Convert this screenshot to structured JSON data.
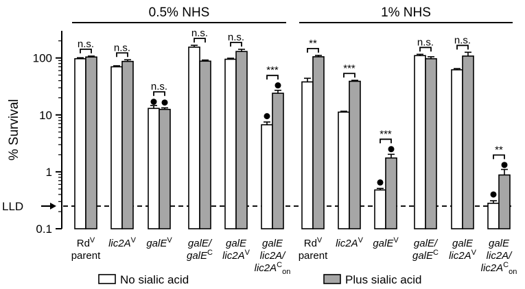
{
  "chart_data": {
    "type": "bar",
    "y_scale": "log",
    "ylabel": "% Survival",
    "ylim": [
      0.1,
      300
    ],
    "yticks": [
      {
        "value": 0.1,
        "label": "0.1"
      },
      {
        "value": 1,
        "label": "1"
      },
      {
        "value": 10,
        "label": "10"
      },
      {
        "value": 100,
        "label": "100"
      }
    ],
    "lld": {
      "label": "LLD",
      "value": 0.25
    },
    "series": [
      {
        "name": "No sialic acid",
        "color": "#ffffff"
      },
      {
        "name": "Plus sialic acid",
        "color": "#a6a6a6"
      }
    ],
    "groups": [
      {
        "label": "0.5% NHS",
        "categories": [
          {
            "lines": [
              "Rd|V",
              "parent"
            ],
            "values": [
              97,
              104
            ],
            "errors": [
              4,
              4
            ],
            "sig": "n.s.",
            "dots": [
              [],
              []
            ]
          },
          {
            "lines": [
              "_lic2A_|V"
            ],
            "values": [
              70,
              87
            ],
            "errors": [
              3,
              6
            ],
            "sig": "n.s.",
            "dots": [
              [],
              []
            ]
          },
          {
            "lines": [
              "_galE_|V"
            ],
            "values": [
              13,
              12.5
            ],
            "errors": [
              1.6,
              0.8
            ],
            "sig": "n.s.",
            "dots": [
              [
                17
              ],
              [
                16.5
              ]
            ]
          },
          {
            "lines": [
              "_galE/_",
              "_galE_|C"
            ],
            "values": [
              155,
              88
            ],
            "errors": [
              12,
              4
            ],
            "sig": "n.s.",
            "dots": [
              [],
              []
            ]
          },
          {
            "lines": [
              "_galE_",
              "_lic2A_|V"
            ],
            "values": [
              95,
              130
            ],
            "errors": [
              4,
              12
            ],
            "sig": "n.s.",
            "dots": [
              [],
              []
            ]
          },
          {
            "lines": [
              "_galE_",
              "_lic2A/_",
              "_lic2A_|C||on"
            ],
            "values": [
              6.7,
              24
            ],
            "errors": [
              0.8,
              3
            ],
            "sig": "***",
            "dots": [
              [
                9.5
              ],
              [
                33
              ]
            ]
          }
        ]
      },
      {
        "label": "1% NHS",
        "categories": [
          {
            "lines": [
              "Rd|V",
              "parent"
            ],
            "values": [
              38,
              105
            ],
            "errors": [
              6,
              6
            ],
            "sig": "**",
            "dots": [
              [],
              []
            ]
          },
          {
            "lines": [
              "_lic2A_|V"
            ],
            "values": [
              11.2,
              39
            ],
            "errors": [
              0.4,
              1.5
            ],
            "sig": "***",
            "dots": [
              [],
              []
            ]
          },
          {
            "lines": [
              "_galE_|V"
            ],
            "values": [
              0.48,
              1.75
            ],
            "errors": [
              0.03,
              0.28
            ],
            "sig": "***",
            "dots": [
              [
                0.65
              ],
              [
                2.5
              ]
            ]
          },
          {
            "lines": [
              "_galE/_",
              "_galE_|C"
            ],
            "values": [
              110,
              97
            ],
            "errors": [
              6,
              8
            ],
            "sig": "n.s.",
            "dots": [
              [],
              []
            ]
          },
          {
            "lines": [
              "_galE_",
              "_lic2A_|V"
            ],
            "values": [
              62,
              108
            ],
            "errors": [
              3,
              18
            ],
            "sig": "n.s.",
            "dots": [
              [],
              []
            ]
          },
          {
            "lines": [
              "_galE_",
              "_lic2A/_",
              "_lic2A_|C||on"
            ],
            "values": [
              0.28,
              0.88
            ],
            "errors": [
              0.03,
              0.22
            ],
            "sig": "**",
            "dots": [
              [
                0.4
              ],
              [
                1.32
              ]
            ]
          }
        ]
      }
    ]
  }
}
